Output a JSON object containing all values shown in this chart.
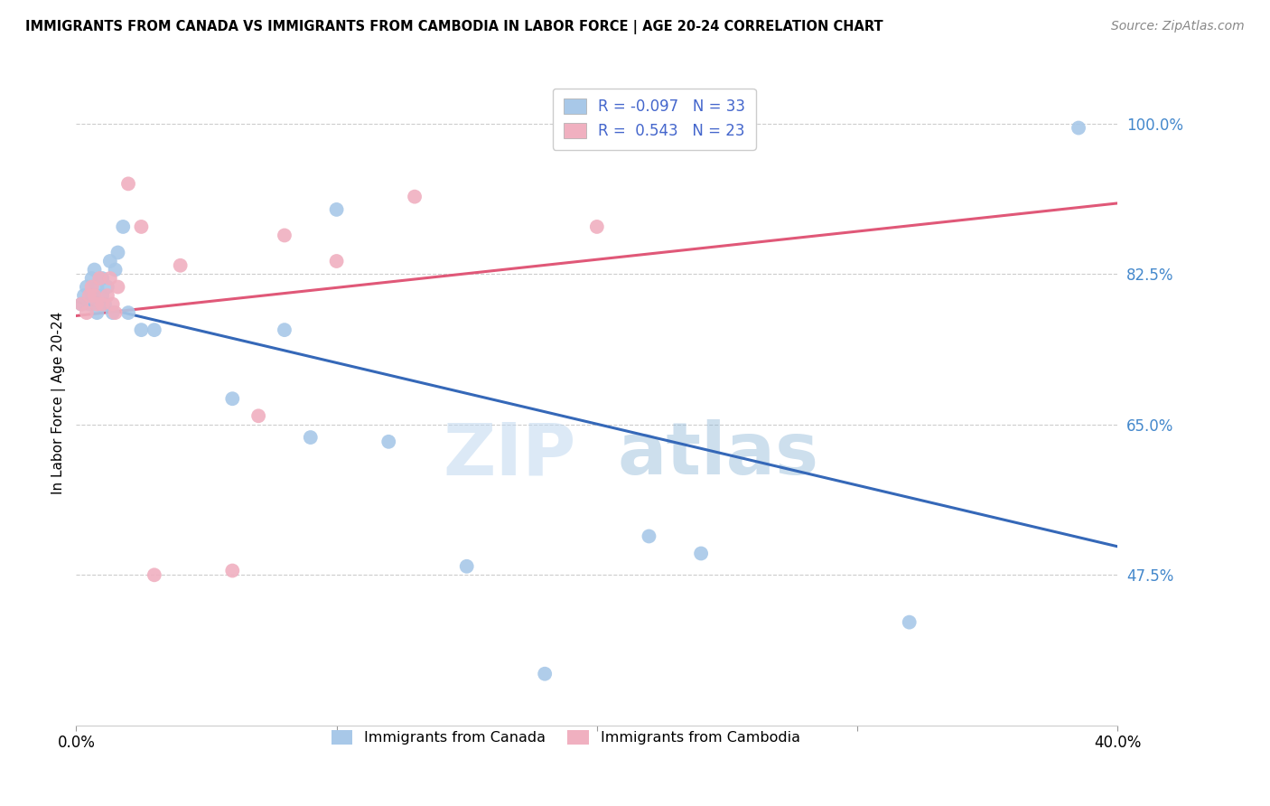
{
  "title": "IMMIGRANTS FROM CANADA VS IMMIGRANTS FROM CAMBODIA IN LABOR FORCE | AGE 20-24 CORRELATION CHART",
  "source": "Source: ZipAtlas.com",
  "ylabel": "In Labor Force | Age 20-24",
  "xlim": [
    0.0,
    0.4
  ],
  "ylim": [
    0.3,
    1.05
  ],
  "yticks": [
    0.475,
    0.65,
    0.825,
    1.0
  ],
  "ytick_labels": [
    "47.5%",
    "65.0%",
    "82.5%",
    "100.0%"
  ],
  "xticks": [
    0.0,
    0.1,
    0.2,
    0.3,
    0.4
  ],
  "xtick_labels": [
    "0.0%",
    "",
    "",
    "",
    "40.0%"
  ],
  "watermark": "ZIPatlas",
  "legend_r_canada": "-0.097",
  "legend_n_canada": "33",
  "legend_r_cambodia": "0.543",
  "legend_n_cambodia": "23",
  "canada_color": "#a8c8e8",
  "cambodia_color": "#f0b0c0",
  "canada_line_color": "#3568b8",
  "cambodia_line_color": "#e05878",
  "canada_x": [
    0.002,
    0.003,
    0.004,
    0.005,
    0.006,
    0.006,
    0.007,
    0.008,
    0.008,
    0.009,
    0.01,
    0.01,
    0.011,
    0.012,
    0.013,
    0.014,
    0.015,
    0.016,
    0.018,
    0.02,
    0.025,
    0.03,
    0.06,
    0.08,
    0.09,
    0.1,
    0.12,
    0.15,
    0.18,
    0.22,
    0.24,
    0.32,
    0.385
  ],
  "canada_y": [
    0.79,
    0.8,
    0.81,
    0.79,
    0.8,
    0.82,
    0.83,
    0.78,
    0.81,
    0.79,
    0.8,
    0.82,
    0.79,
    0.81,
    0.84,
    0.78,
    0.83,
    0.85,
    0.88,
    0.78,
    0.76,
    0.76,
    0.68,
    0.76,
    0.635,
    0.9,
    0.63,
    0.485,
    0.36,
    0.52,
    0.5,
    0.42,
    0.995
  ],
  "cambodia_x": [
    0.002,
    0.004,
    0.005,
    0.006,
    0.007,
    0.008,
    0.009,
    0.01,
    0.012,
    0.013,
    0.014,
    0.015,
    0.016,
    0.02,
    0.025,
    0.04,
    0.06,
    0.07,
    0.08,
    0.1,
    0.13,
    0.2,
    0.03
  ],
  "cambodia_y": [
    0.79,
    0.78,
    0.8,
    0.81,
    0.8,
    0.79,
    0.82,
    0.79,
    0.8,
    0.82,
    0.79,
    0.78,
    0.81,
    0.93,
    0.88,
    0.835,
    0.48,
    0.66,
    0.87,
    0.84,
    0.915,
    0.88,
    0.475
  ]
}
